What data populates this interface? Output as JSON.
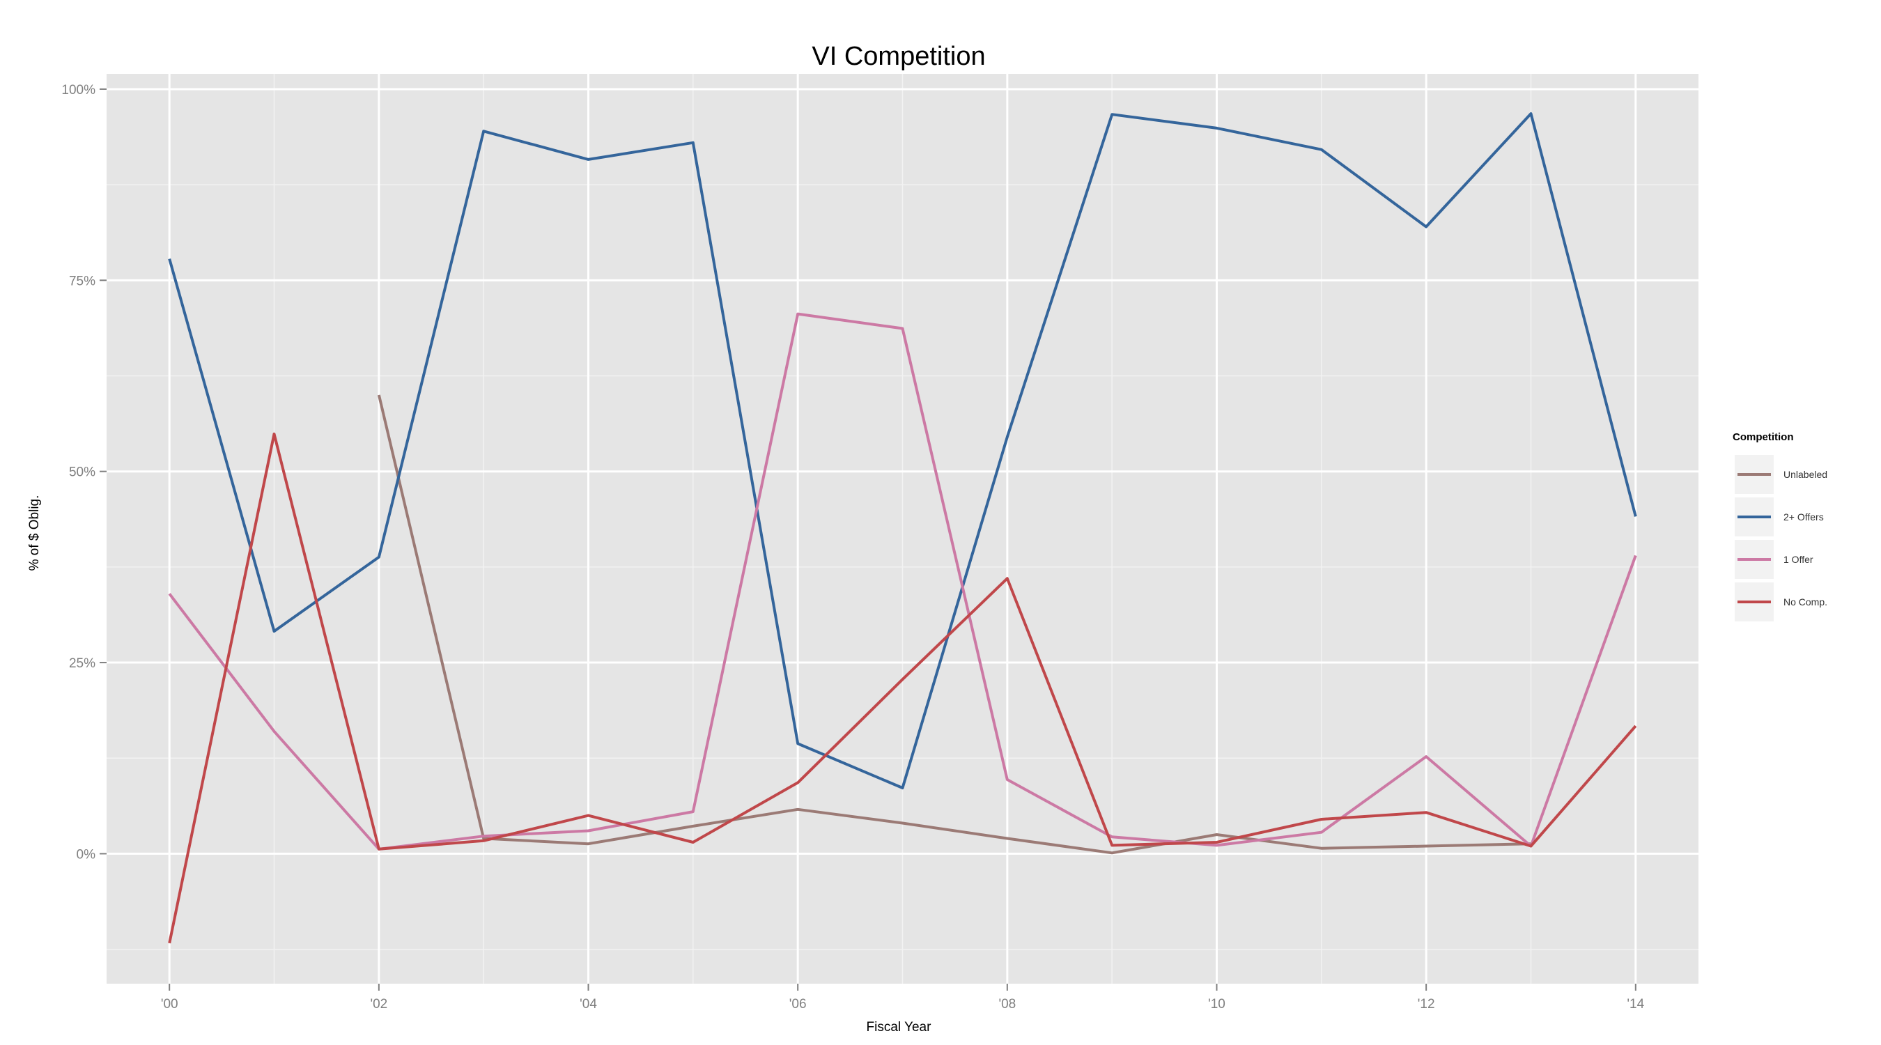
{
  "chart_data": {
    "type": "line",
    "title": "VI Competition",
    "xlabel": "Fiscal Year",
    "ylabel": "% of $ Oblig.",
    "x": [
      2000,
      2001,
      2002,
      2003,
      2004,
      2005,
      2006,
      2007,
      2008,
      2009,
      2010,
      2011,
      2012,
      2013,
      2014
    ],
    "x_ticks": [
      {
        "value": 2000,
        "label": "'00"
      },
      {
        "value": 2002,
        "label": "'02"
      },
      {
        "value": 2004,
        "label": "'04"
      },
      {
        "value": 2006,
        "label": "'06"
      },
      {
        "value": 2008,
        "label": "'08"
      },
      {
        "value": 2010,
        "label": "'10"
      },
      {
        "value": 2012,
        "label": "'12"
      },
      {
        "value": 2014,
        "label": "'14"
      }
    ],
    "y_ticks": [
      {
        "value": 0,
        "label": "0%"
      },
      {
        "value": 0.25,
        "label": "25%"
      },
      {
        "value": 0.5,
        "label": "50%"
      },
      {
        "value": 0.75,
        "label": "75%"
      },
      {
        "value": 1.0,
        "label": "100%"
      }
    ],
    "xlim": [
      1999.4,
      2014.6
    ],
    "ylim": [
      -0.17,
      1.02
    ],
    "grid": true,
    "legend": {
      "title": "Competition",
      "position": "right"
    },
    "series": [
      {
        "name": "Unlabeled",
        "color": "#9b7a75",
        "x": [
          2002,
          2003,
          2004,
          2005,
          2006,
          2007,
          2008,
          2009,
          2010,
          2011,
          2012,
          2013
        ],
        "values": [
          0.6,
          0.02,
          0.013,
          0.036,
          0.058,
          0.04,
          0.02,
          0.001,
          0.025,
          0.007,
          0.01,
          0.013
        ]
      },
      {
        "name": "2+ Offers",
        "color": "#34659b",
        "x": [
          2000,
          2001,
          2002,
          2003,
          2004,
          2005,
          2006,
          2007,
          2008,
          2009,
          2010,
          2011,
          2012,
          2013,
          2014
        ],
        "values": [
          0.778,
          0.291,
          0.388,
          0.945,
          0.908,
          0.93,
          0.144,
          0.086,
          0.545,
          0.967,
          0.949,
          0.921,
          0.82,
          0.968,
          0.441
        ]
      },
      {
        "name": "1 Offer",
        "color": "#cc79a4",
        "x": [
          2000,
          2001,
          2002,
          2003,
          2004,
          2005,
          2006,
          2007,
          2008,
          2009,
          2010,
          2011,
          2012,
          2013,
          2014
        ],
        "values": [
          0.34,
          0.16,
          0.006,
          0.023,
          0.03,
          0.055,
          0.706,
          0.687,
          0.097,
          0.022,
          0.011,
          0.028,
          0.127,
          0.01,
          0.39
        ]
      },
      {
        "name": "No Comp.",
        "color": "#c0474a",
        "x": [
          2000,
          2001,
          2002,
          2003,
          2004,
          2005,
          2006,
          2007,
          2008,
          2009,
          2010,
          2011,
          2012,
          2013,
          2014
        ],
        "values": [
          -0.117,
          0.549,
          0.006,
          0.017,
          0.05,
          0.015,
          0.093,
          0.228,
          0.36,
          0.011,
          0.015,
          0.045,
          0.054,
          0.01,
          0.167
        ]
      }
    ]
  }
}
